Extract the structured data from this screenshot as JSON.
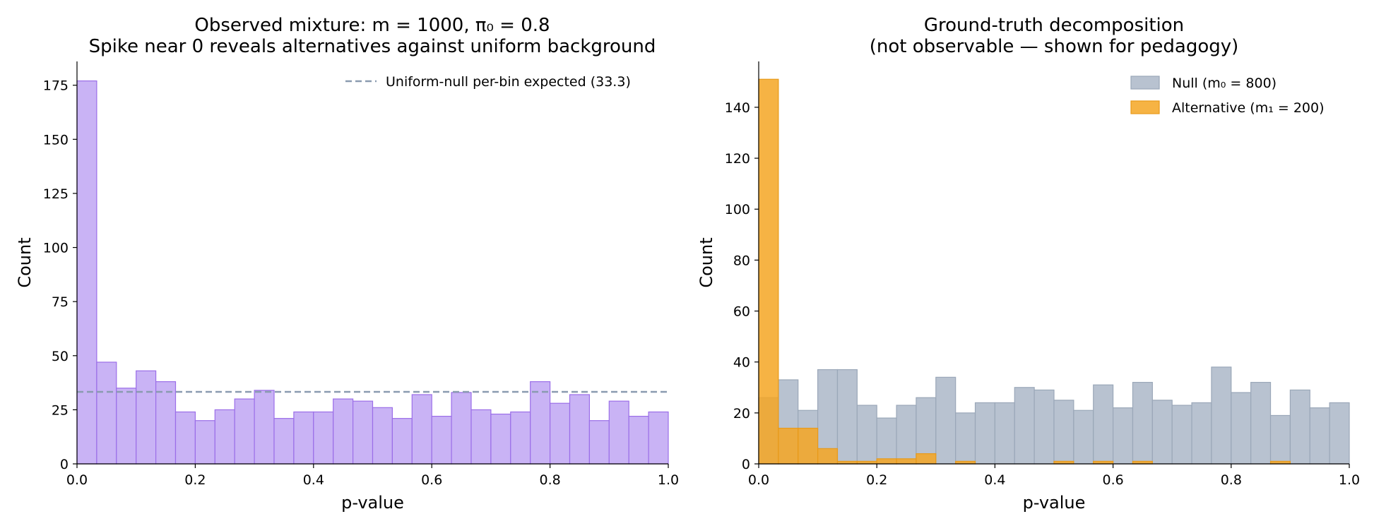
{
  "chart_data": [
    {
      "type": "bar",
      "title_lines": [
        "Observed mixture: m = 1000, π₀ = 0.8",
        "Spike near 0 reveals alternatives against uniform background"
      ],
      "xlabel": "p-value",
      "ylabel": "Count",
      "xlim": [
        0,
        1
      ],
      "ylim": [
        0,
        186
      ],
      "xticks": [
        "0.0",
        "0.2",
        "0.4",
        "0.6",
        "0.8",
        "1.0"
      ],
      "yticks": [
        "0",
        "25",
        "50",
        "75",
        "100",
        "125",
        "150",
        "175"
      ],
      "bin_width": 0.0333,
      "series": [
        {
          "color": "#c9b3f5",
          "edge_color": "#9b6ee8",
          "values": [
            177,
            47,
            35,
            43,
            38,
            24,
            20,
            25,
            30,
            34,
            21,
            24,
            24,
            30,
            29,
            26,
            21,
            32,
            22,
            33,
            25,
            23,
            24,
            38,
            28,
            32,
            20,
            29,
            22,
            24
          ]
        }
      ],
      "reference_line": {
        "label": "Uniform-null per-bin expected (33.3)",
        "value": 33.3,
        "color": "#8a9bb0",
        "style": "dashed"
      },
      "legend_position": "top-right"
    },
    {
      "type": "bar",
      "title_lines": [
        "Ground-truth decomposition",
        "(not observable — shown for pedagogy)"
      ],
      "xlabel": "p-value",
      "ylabel": "Count",
      "xlim": [
        0,
        1
      ],
      "ylim": [
        0,
        158
      ],
      "xticks": [
        "0.0",
        "0.2",
        "0.4",
        "0.6",
        "0.8",
        "1.0"
      ],
      "yticks": [
        "0",
        "20",
        "40",
        "60",
        "80",
        "100",
        "120",
        "140"
      ],
      "bin_width": 0.0333,
      "series": [
        {
          "name": "Null (m₀ = 800)",
          "color": "#b8c2d0",
          "edge_color": "#9aa7b8",
          "values": [
            26,
            33,
            21,
            37,
            37,
            23,
            18,
            23,
            26,
            34,
            20,
            24,
            24,
            30,
            29,
            25,
            21,
            31,
            22,
            32,
            25,
            23,
            24,
            38,
            28,
            32,
            19,
            29,
            22,
            24
          ]
        },
        {
          "name": "Alternative (m₁ = 200)",
          "color": "#f5a623",
          "edge_color": "#e89a1a",
          "values": [
            151,
            14,
            14,
            6,
            1,
            1,
            2,
            2,
            4,
            0,
            1,
            0,
            0,
            0,
            0,
            1,
            0,
            1,
            0,
            1,
            0,
            0,
            0,
            0,
            0,
            0,
            1,
            0,
            0,
            0
          ]
        }
      ],
      "legend_position": "top-right"
    }
  ]
}
